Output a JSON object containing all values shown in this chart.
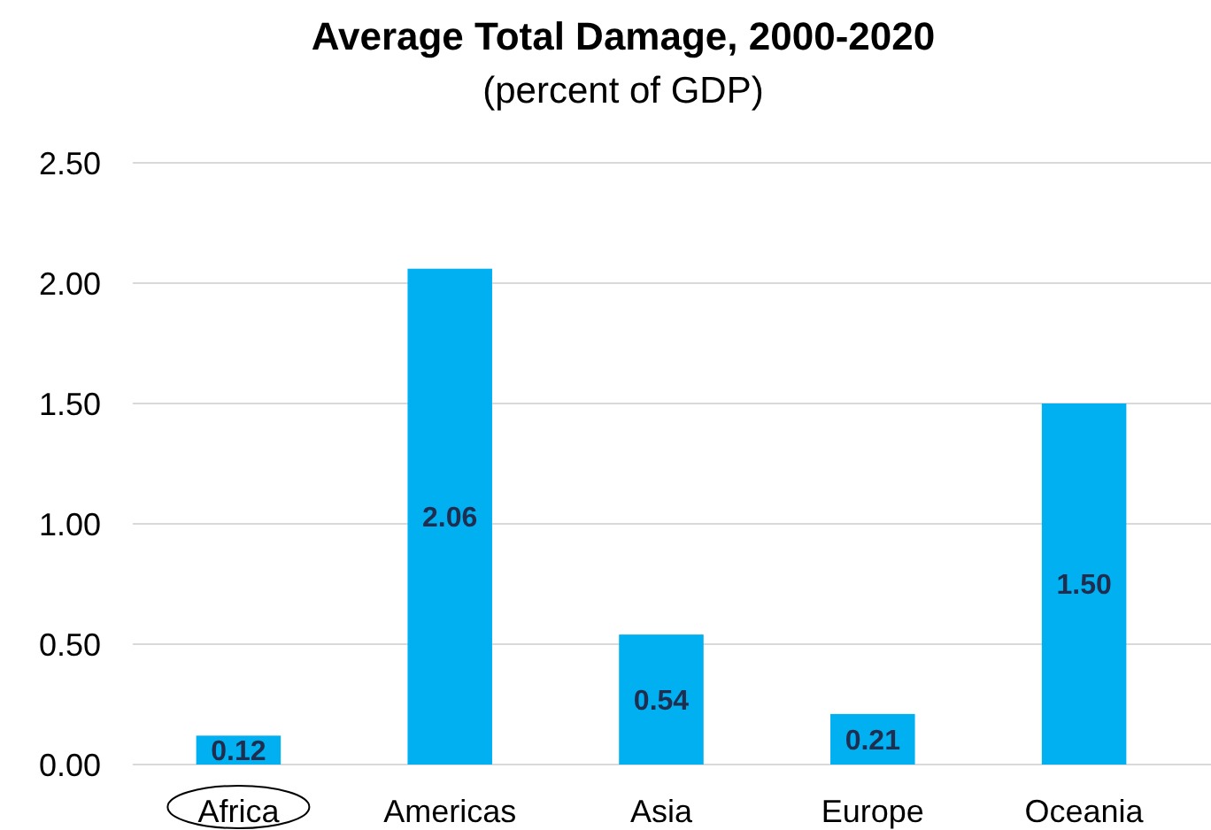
{
  "chart_data": {
    "type": "bar",
    "title": "Average Total Damage, 2000-2020",
    "subtitle": "(percent of GDP)",
    "categories": [
      "Africa",
      "Americas",
      "Asia",
      "Europe",
      "Oceania"
    ],
    "values": [
      0.12,
      2.06,
      0.54,
      0.21,
      1.5
    ],
    "value_labels": [
      "0.12",
      "2.06",
      "0.54",
      "0.21",
      "1.50"
    ],
    "color": "#00b0f0",
    "ylim": [
      0,
      2.5
    ],
    "yticks": [
      {
        "value": 0,
        "label": "0.00"
      },
      {
        "value": 0.5,
        "label": "0.50"
      },
      {
        "value": 1,
        "label": "1.00"
      },
      {
        "value": 1.5,
        "label": "1.50"
      },
      {
        "value": 2,
        "label": "2.00"
      },
      {
        "value": 2.5,
        "label": "2.50"
      }
    ],
    "grid": "y"
  }
}
